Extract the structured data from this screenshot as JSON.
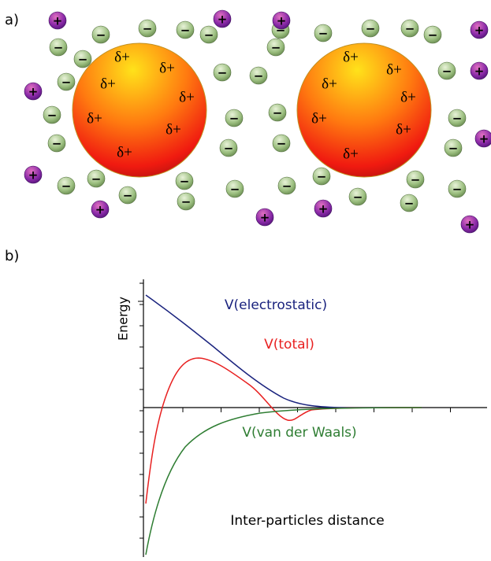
{
  "panel_a": {
    "label": "a)",
    "particle_charge": "δ+",
    "positive_ion": "+",
    "negative_ion": "−"
  },
  "panel_b": {
    "label": "b)",
    "y_axis_label": "Energy",
    "x_axis_label": "Inter-particles distance",
    "curves": {
      "electrostatic": "V(electrostatic)",
      "total": "V(total)",
      "van_der_waals": "V(van der Waals)"
    }
  }
}
